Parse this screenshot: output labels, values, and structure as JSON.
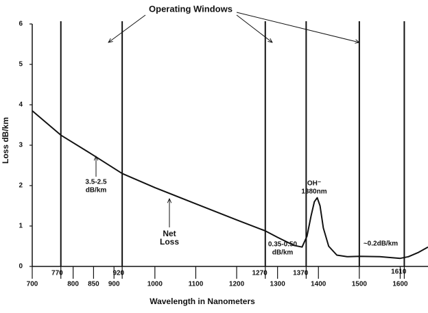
{
  "chart_data": {
    "type": "line",
    "x_label": "Wavelength in Nanometers",
    "y_label": "Loss dB/km",
    "xlim": [
      700,
      1668
    ],
    "ylim": [
      0,
      6
    ],
    "xticks": [
      700,
      770,
      800,
      850,
      900,
      920,
      1000,
      1100,
      1200,
      1270,
      1300,
      1370,
      1400,
      1500,
      1600,
      1610
    ],
    "yticks": [
      0,
      1,
      2,
      3,
      4,
      5,
      6
    ],
    "window_lines": [
      770,
      920,
      1270,
      1370,
      1500,
      1610
    ],
    "windows_label": "Operating Windows",
    "color": "#111111",
    "series": [
      {
        "name": "Net Loss",
        "color": "#111111",
        "x": [
          700,
          770,
          850,
          920,
          1000,
          1100,
          1200,
          1270,
          1300,
          1340,
          1360,
          1372,
          1382,
          1390,
          1397,
          1404,
          1412,
          1425,
          1445,
          1470,
          1500,
          1550,
          1600,
          1620,
          1645,
          1668
        ],
        "values": [
          3.85,
          3.25,
          2.75,
          2.3,
          1.95,
          1.55,
          1.15,
          0.88,
          0.72,
          0.52,
          0.48,
          0.75,
          1.25,
          1.6,
          1.7,
          1.5,
          0.95,
          0.5,
          0.28,
          0.24,
          0.25,
          0.24,
          0.2,
          0.24,
          0.35,
          0.48
        ]
      }
    ],
    "annotations": [
      {
        "lines": [
          "3.5-2.5",
          "dB/km"
        ]
      },
      {
        "lines": [
          "Net",
          "Loss"
        ]
      },
      {
        "lines": [
          "OH⁻",
          "1380nm"
        ]
      },
      {
        "lines": [
          "0.35-0.50",
          "dB/km"
        ]
      },
      {
        "lines": [
          "~0.2dB/km"
        ]
      }
    ]
  }
}
